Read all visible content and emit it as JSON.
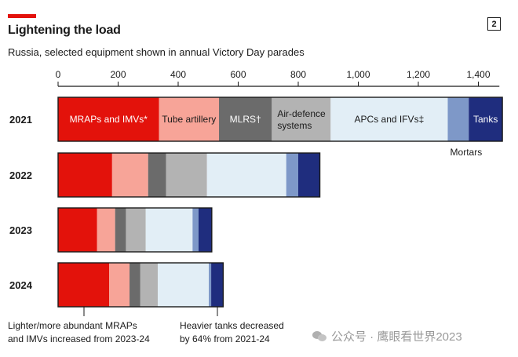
{
  "header": {
    "title": "Lightening the load",
    "subtitle": "Russia, selected equipment shown in annual Victory Day parades",
    "figure_number": "2"
  },
  "chart_data": {
    "type": "bar",
    "orientation": "horizontal",
    "stacked": true,
    "xlim": [
      0,
      1470
    ],
    "x_ticks": [
      0,
      200,
      400,
      600,
      800,
      1000,
      1200,
      1400
    ],
    "x_tick_labels": [
      "0",
      "200",
      "400",
      "600",
      "800",
      "1,000",
      "1,200",
      "1,400"
    ],
    "categories": [
      "2021",
      "2022",
      "2023",
      "2024"
    ],
    "series": [
      {
        "name": "MRAPs and IMVs*",
        "color": "#e3120b",
        "values": [
          336,
          180,
          130,
          170
        ]
      },
      {
        "name": "Tube artillery",
        "color": "#f7a498",
        "values": [
          200,
          120,
          60,
          68
        ]
      },
      {
        "name": "MLRS†",
        "color": "#6b6b6b",
        "values": [
          176,
          60,
          36,
          36
        ]
      },
      {
        "name": "Air-defence systems",
        "color": "#b3b3b3",
        "values": [
          196,
          136,
          66,
          58
        ]
      },
      {
        "name": "APCs and IFVs‡",
        "color": "#e2eef6",
        "values": [
          390,
          264,
          156,
          170
        ]
      },
      {
        "name": "Mortars",
        "color": "#7e98c8",
        "values": [
          70,
          40,
          20,
          8
        ]
      },
      {
        "name": "Tanks",
        "color": "#1f2d7e",
        "values": [
          112,
          72,
          44,
          40
        ]
      }
    ],
    "grid": false,
    "legend": "inline labels on 2021 bar",
    "annotations": [
      {
        "text_lines": [
          "Lighter/more abundant MRAPs",
          "and IMVs increased from 2023-24"
        ]
      },
      {
        "text_lines": [
          "Heavier tanks decreased",
          "by 64% from 2021-24"
        ]
      }
    ]
  },
  "watermark": {
    "text": "公众号 · 鹰眼看世界2023"
  }
}
